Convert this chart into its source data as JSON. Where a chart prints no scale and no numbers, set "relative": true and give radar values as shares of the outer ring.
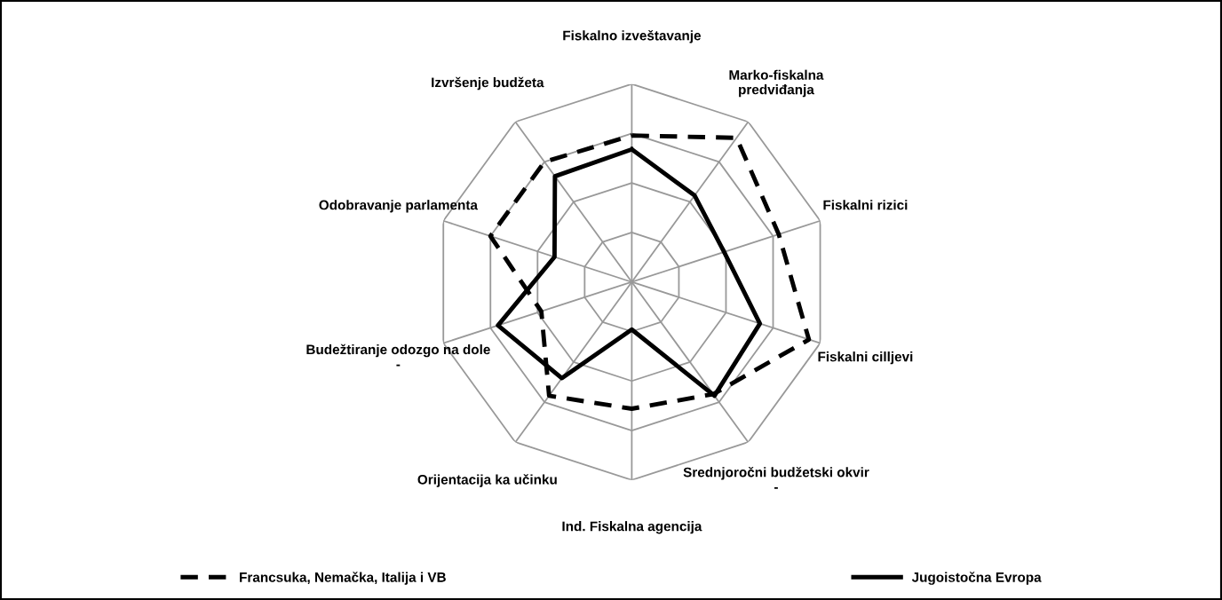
{
  "chart_data": {
    "type": "radar",
    "relative": true,
    "legend": "bottom",
    "grid": true,
    "marker": "none",
    "categories": [
      "Fiskalno izveštavanje",
      "Marko-fiskalna\npredviđanja",
      "Fiskalni rizici",
      "Fiskalni cilljevi",
      "Srednjoročni budžetski okvir\n-",
      "Ind. Fiskalna agencija",
      "Orijentacija ka učinku",
      "Budežtiranje odozgo na dole\n-",
      "Odobravanje parlamenta",
      "Izvršenje budžeta"
    ],
    "series": [
      {
        "name": "Francsuka, Nemačka, Italija i VB",
        "color": "#000000",
        "line_style": "dashed",
        "values": [
          0.74,
          0.9,
          0.78,
          0.94,
          0.7,
          0.64,
          0.71,
          0.48,
          0.75,
          0.75
        ]
      },
      {
        "name": "Jugoistočna Evropa",
        "color": "#000000",
        "line_style": "solid",
        "values": [
          0.67,
          0.54,
          0.49,
          0.68,
          0.71,
          0.24,
          0.6,
          0.71,
          0.41,
          0.66
        ]
      }
    ]
  }
}
